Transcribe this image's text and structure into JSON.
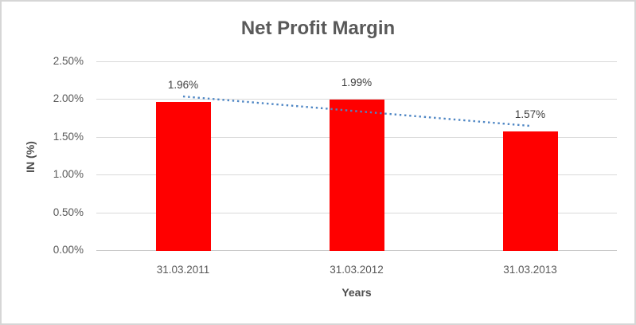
{
  "chart_data": {
    "type": "bar",
    "title": "Net Profit Margin",
    "categories": [
      "31.03.2011",
      "31.03.2012",
      "31.03.2013"
    ],
    "values": [
      1.96,
      1.99,
      1.57
    ],
    "data_labels": [
      "1.96%",
      "1.99%",
      "1.57%"
    ],
    "xlabel": "Years",
    "ylabel": "IN (%)",
    "ylim": [
      0,
      2.5
    ],
    "ytick_step": 0.5,
    "ytick_labels": [
      "0.00%",
      "0.50%",
      "1.00%",
      "1.50%",
      "2.00%",
      "2.50%"
    ],
    "grid": true,
    "legend": "none",
    "bar_color": "#FF0000",
    "gridline_color": "#D9D9D9",
    "axis_line_color": "#C9C9C9",
    "tick_label_color": "#595959",
    "data_label_color": "#404040",
    "title_color": "#595959",
    "trendline": {
      "type": "linear",
      "style": "dotted",
      "color": "#4E86C4",
      "start_value": 2.035,
      "end_value": 1.645
    }
  }
}
